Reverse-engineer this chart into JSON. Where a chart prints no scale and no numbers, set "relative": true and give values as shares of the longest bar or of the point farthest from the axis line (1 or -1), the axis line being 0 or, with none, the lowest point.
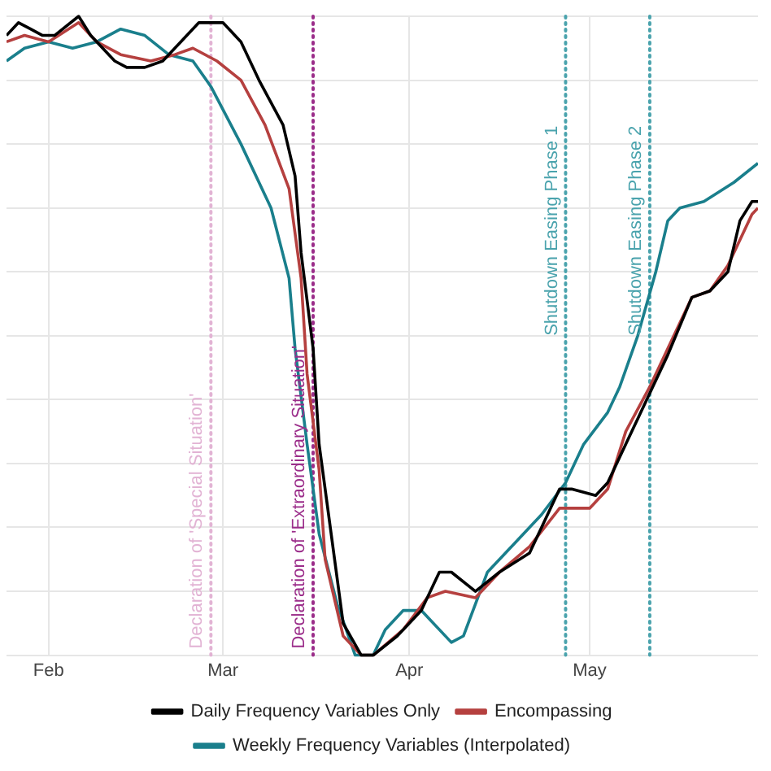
{
  "chart_data": {
    "type": "line",
    "relative": true,
    "xlim": [
      "--01-25",
      "--05-29"
    ],
    "xticks": [
      {
        "value": "--02-01",
        "label": "Feb"
      },
      {
        "value": "--03-01",
        "label": "Mar"
      },
      {
        "value": "--04-01",
        "label": "Apr"
      },
      {
        "value": "--05-01",
        "label": "May"
      }
    ],
    "grid": true,
    "legend": "bottom",
    "marker": "none",
    "line_style": "solid",
    "ref_lines": [
      {
        "axis": "x",
        "value": "--02-28",
        "label": "Declaration of 'Special Situation'",
        "color": "#e2b3d4",
        "line_style": "dotted"
      },
      {
        "axis": "x",
        "value": "--03-16",
        "label": "Declaration of 'Extraordinary Situation'",
        "color": "#9b2d8a",
        "line_style": "dotted"
      },
      {
        "axis": "x",
        "value": "--04-27",
        "label": "Shutdown Easing Phase 1",
        "color": "#4aa3ad",
        "line_style": "dotted"
      },
      {
        "axis": "x",
        "value": "--05-11",
        "label": "Shutdown Easing Phase 2",
        "color": "#4aa3ad",
        "line_style": "dotted"
      }
    ],
    "series": [
      {
        "name": "Daily Frequency Variables Only",
        "color": "#000000",
        "x": [
          "--01-25",
          "--01-27",
          "--01-29",
          "--01-31",
          "--02-02",
          "--02-06",
          "--02-08",
          "--02-12",
          "--02-14",
          "--02-17",
          "--02-20",
          "--02-22",
          "--02-26",
          "--02-28",
          "--03-01",
          "--03-04",
          "--03-07",
          "--03-11",
          "--03-13",
          "--03-14",
          "--03-16",
          "--03-17",
          "--03-19",
          "--03-21",
          "--03-24",
          "--03-26",
          "--03-30",
          "--04-03",
          "--04-06",
          "--04-08",
          "--04-12",
          "--04-16",
          "--04-21",
          "--04-22",
          "--04-26",
          "--04-28",
          "--05-02",
          "--05-04",
          "--05-07",
          "--05-11",
          "--05-14",
          "--05-18",
          "--05-21",
          "--05-24",
          "--05-26",
          "--05-28",
          "--05-29"
        ],
        "values": [
          0.97,
          0.99,
          0.98,
          0.97,
          0.97,
          1.0,
          0.97,
          0.93,
          0.92,
          0.92,
          0.93,
          0.95,
          0.99,
          0.99,
          0.99,
          0.96,
          0.9,
          0.83,
          0.75,
          0.63,
          0.48,
          0.33,
          0.19,
          0.05,
          0.0,
          0.0,
          0.03,
          0.07,
          0.13,
          0.13,
          0.1,
          0.13,
          0.16,
          0.18,
          0.26,
          0.26,
          0.25,
          0.27,
          0.33,
          0.41,
          0.47,
          0.56,
          0.57,
          0.6,
          0.68,
          0.71,
          0.71
        ]
      },
      {
        "name": "Encompassing",
        "color": "#b5403f",
        "x": [
          "--01-25",
          "--01-28",
          "--02-01",
          "--02-06",
          "--02-09",
          "--02-13",
          "--02-18",
          "--02-22",
          "--02-25",
          "--02-29",
          "--03-04",
          "--03-08",
          "--03-12",
          "--03-14",
          "--03-15",
          "--03-17",
          "--03-18",
          "--03-21",
          "--03-24",
          "--03-26",
          "--03-31",
          "--04-04",
          "--04-07",
          "--04-12",
          "--04-16",
          "--04-21",
          "--04-26",
          "--05-01",
          "--05-04",
          "--05-07",
          "--05-11",
          "--05-14",
          "--05-18",
          "--05-21",
          "--05-24",
          "--05-28",
          "--05-29"
        ],
        "values": [
          0.96,
          0.97,
          0.96,
          0.99,
          0.96,
          0.94,
          0.93,
          0.94,
          0.95,
          0.93,
          0.9,
          0.83,
          0.73,
          0.59,
          0.44,
          0.29,
          0.15,
          0.03,
          0.0,
          0.0,
          0.04,
          0.09,
          0.1,
          0.09,
          0.13,
          0.17,
          0.23,
          0.23,
          0.26,
          0.35,
          0.42,
          0.48,
          0.56,
          0.57,
          0.61,
          0.69,
          0.7
        ]
      },
      {
        "name": "Weekly Frequency Variables (Interpolated)",
        "color": "#1a7f8c",
        "x": [
          "--01-25",
          "--01-28",
          "--02-01",
          "--02-05",
          "--02-09",
          "--02-13",
          "--02-17",
          "--02-21",
          "--02-25",
          "--02-28",
          "--03-04",
          "--03-09",
          "--03-12",
          "--03-13",
          "--03-15",
          "--03-17",
          "--03-20",
          "--03-23",
          "--03-26",
          "--03-28",
          "--03-31",
          "--04-03",
          "--04-08",
          "--04-10",
          "--04-14",
          "--04-19",
          "--04-23",
          "--04-27",
          "--04-30",
          "--05-04",
          "--05-06",
          "--05-09",
          "--05-12",
          "--05-14",
          "--05-16",
          "--05-20",
          "--05-25",
          "--05-29"
        ],
        "values": [
          0.93,
          0.95,
          0.96,
          0.95,
          0.96,
          0.98,
          0.97,
          0.94,
          0.93,
          0.89,
          0.8,
          0.7,
          0.59,
          0.48,
          0.33,
          0.19,
          0.08,
          0.0,
          0.0,
          0.04,
          0.07,
          0.07,
          0.02,
          0.03,
          0.13,
          0.18,
          0.22,
          0.27,
          0.33,
          0.38,
          0.42,
          0.5,
          0.6,
          0.68,
          0.7,
          0.71,
          0.74,
          0.77
        ]
      }
    ]
  }
}
